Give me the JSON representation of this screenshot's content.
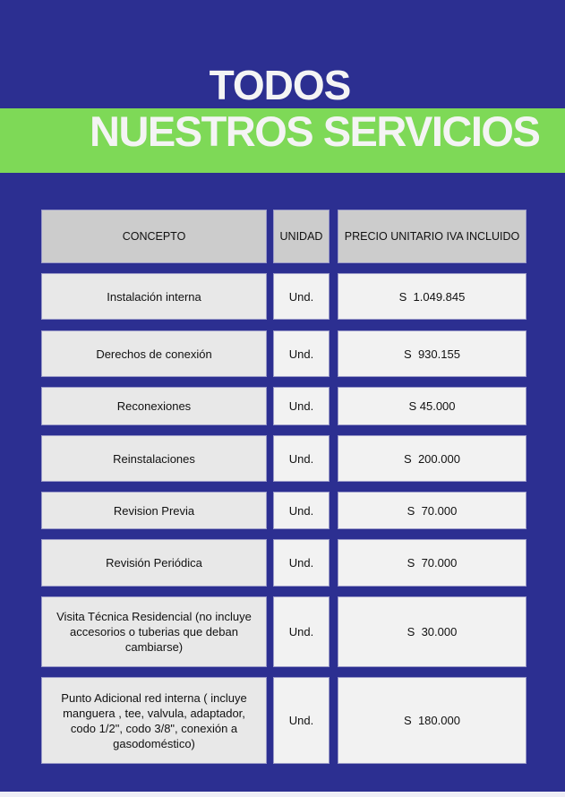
{
  "title": {
    "line1": "TODOS",
    "line2": "NUESTROS SERVICIOS"
  },
  "colors": {
    "background": "#2c2f91",
    "band": "#7ed957",
    "header_cell": "#cccccc"
  },
  "table": {
    "headers": [
      "CONCEPTO",
      "UNIDAD",
      "PRECIO UNITARIO IVA INCLUIDO"
    ],
    "rows": [
      {
        "concepto": "Instalación interna",
        "unidad": "Und.",
        "precio": "S  1.049.845"
      },
      {
        "concepto": "Derechos de conexión",
        "unidad": "Und.",
        "precio": "S  930.155"
      },
      {
        "concepto": "Reconexiones",
        "unidad": "Und.",
        "precio": "S 45.000"
      },
      {
        "concepto": "Reinstalaciones",
        "unidad": "Und.",
        "precio": "S  200.000"
      },
      {
        "concepto": "Revision Previa",
        "unidad": "Und.",
        "precio": "S  70.000"
      },
      {
        "concepto": "Revisión Periódica",
        "unidad": "Und.",
        "precio": "S  70.000"
      },
      {
        "concepto": "Visita Técnica Residencial (no incluye accesorios o tuberias que deban cambiarse)",
        "unidad": "Und.",
        "precio": "S  30.000"
      },
      {
        "concepto": "Punto Adicional red interna ( incluye manguera , tee, valvula, adaptador, codo 1/2\", codo 3/8\", conexión a gasodoméstico)",
        "unidad": "Und.",
        "precio": "S  180.000"
      }
    ]
  }
}
